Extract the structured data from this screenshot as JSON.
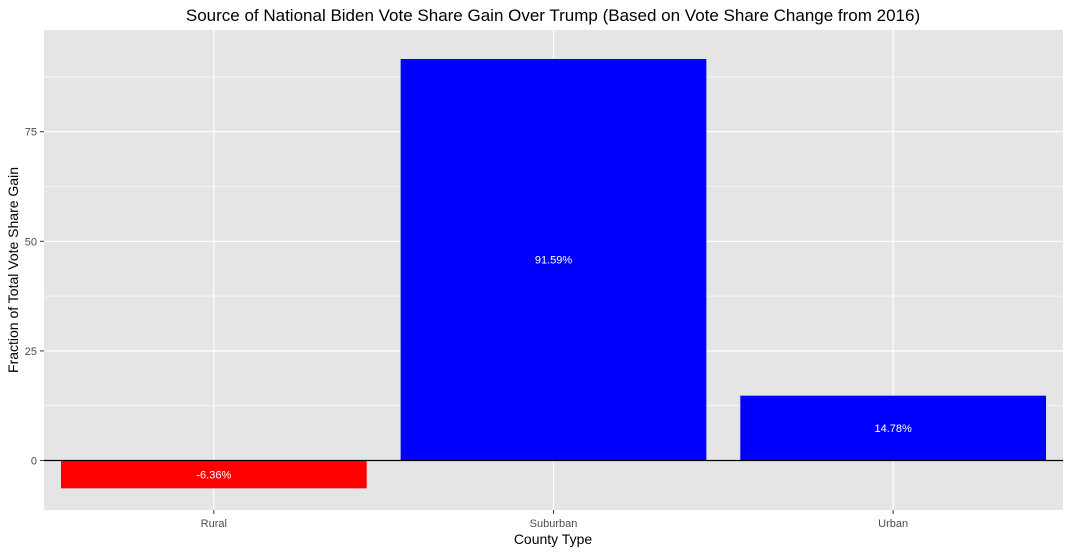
{
  "chart_data": {
    "type": "bar",
    "title": "Source of National Biden Vote Share Gain Over Trump (Based on Vote Share Change from 2016)",
    "xlabel": "County Type",
    "ylabel": "Fraction of Total Vote Share Gain",
    "categories": [
      "Rural",
      "Suburban",
      "Urban"
    ],
    "values": [
      -6.36,
      91.59,
      14.78
    ],
    "bar_labels": [
      "-6.36%",
      "91.59%",
      "14.78%"
    ],
    "bar_colors": [
      "#ff0000",
      "#0000ff",
      "#0000ff"
    ],
    "ylim": [
      -11.3,
      98.2
    ],
    "yticks": [
      0,
      25,
      50,
      75
    ],
    "ytick_labels": [
      "0",
      "25",
      "50",
      "75"
    ],
    "grid": true,
    "zero_line": true,
    "legend": "none",
    "colors": {
      "panel_background": "#e5e5e5",
      "grid_major": "#ffffff",
      "zero_line": "#000000"
    }
  }
}
